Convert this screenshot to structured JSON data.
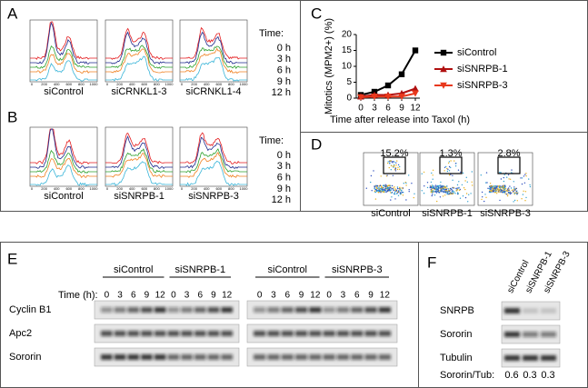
{
  "panel_labels": [
    "A",
    "B",
    "C",
    "D",
    "E",
    "F"
  ],
  "hist_ticks": [
    0,
    200,
    400,
    600,
    800,
    1000
  ],
  "time_colors": [
    "#e41a1c",
    "#1f2a8c",
    "#2ca02c",
    "#f08020",
    "#3ab5d8"
  ],
  "panel_a": {
    "samples": [
      "siControl",
      "siCRNKL1-3",
      "siCRNKL1-4"
    ],
    "legend_title": "Time:",
    "times": [
      "0 h",
      "3 h",
      "6 h",
      "9 h",
      "12 h"
    ]
  },
  "panel_b": {
    "samples": [
      "siControl",
      "siSNRPB-1",
      "siSNRPB-3"
    ],
    "legend_title": "Time:",
    "times": [
      "0 h",
      "3 h",
      "6 h",
      "9 h",
      "12 h"
    ]
  },
  "chart_data": {
    "type": "line",
    "x_label": "Time after release into Taxol (h)",
    "y_label": "Mitotics (MPM2+) (%)",
    "x": [
      0,
      3,
      6,
      9,
      12
    ],
    "series": [
      {
        "name": "siControl",
        "color": "#000000",
        "marker": "square",
        "values": [
          1,
          2,
          4,
          7.5,
          15
        ]
      },
      {
        "name": "siSNRPB-1",
        "color": "#b01010",
        "marker": "triangle",
        "values": [
          0.5,
          1,
          1,
          1.5,
          3
        ]
      },
      {
        "name": "siSNRPB-3",
        "color": "#e8381c",
        "marker": "triangle-down",
        "values": [
          0.3,
          0.5,
          0.5,
          0.5,
          1.5
        ]
      }
    ],
    "xlim": [
      -1,
      13
    ],
    "xticks": [
      0,
      3,
      6,
      9,
      12
    ],
    "ylim": [
      0,
      20
    ],
    "yticks": [
      0,
      5,
      10,
      15,
      20
    ]
  },
  "panel_d": {
    "samples": [
      "siControl",
      "siSNRPB-1",
      "siSNRPB-3"
    ],
    "percent_labels": [
      "15.2%",
      "1.3%",
      "2.8%"
    ]
  },
  "panel_e": {
    "groups": [
      "siControl",
      "siSNRPB-1",
      "siControl",
      "siSNRPB-3"
    ],
    "time_label": "Time (h):",
    "times": [
      0,
      3,
      6,
      9,
      12
    ],
    "rows": [
      "Cyclin B1",
      "Apc2",
      "Sororin"
    ]
  },
  "panel_f": {
    "lanes": [
      "siControl",
      "siSNRPB-1",
      "siSNRPB-3"
    ],
    "rows": [
      "SNRPB",
      "Sororin",
      "Tubulin"
    ],
    "ratio_label": "Sororin/Tub:",
    "ratios": [
      0.6,
      0.3,
      0.3
    ]
  }
}
